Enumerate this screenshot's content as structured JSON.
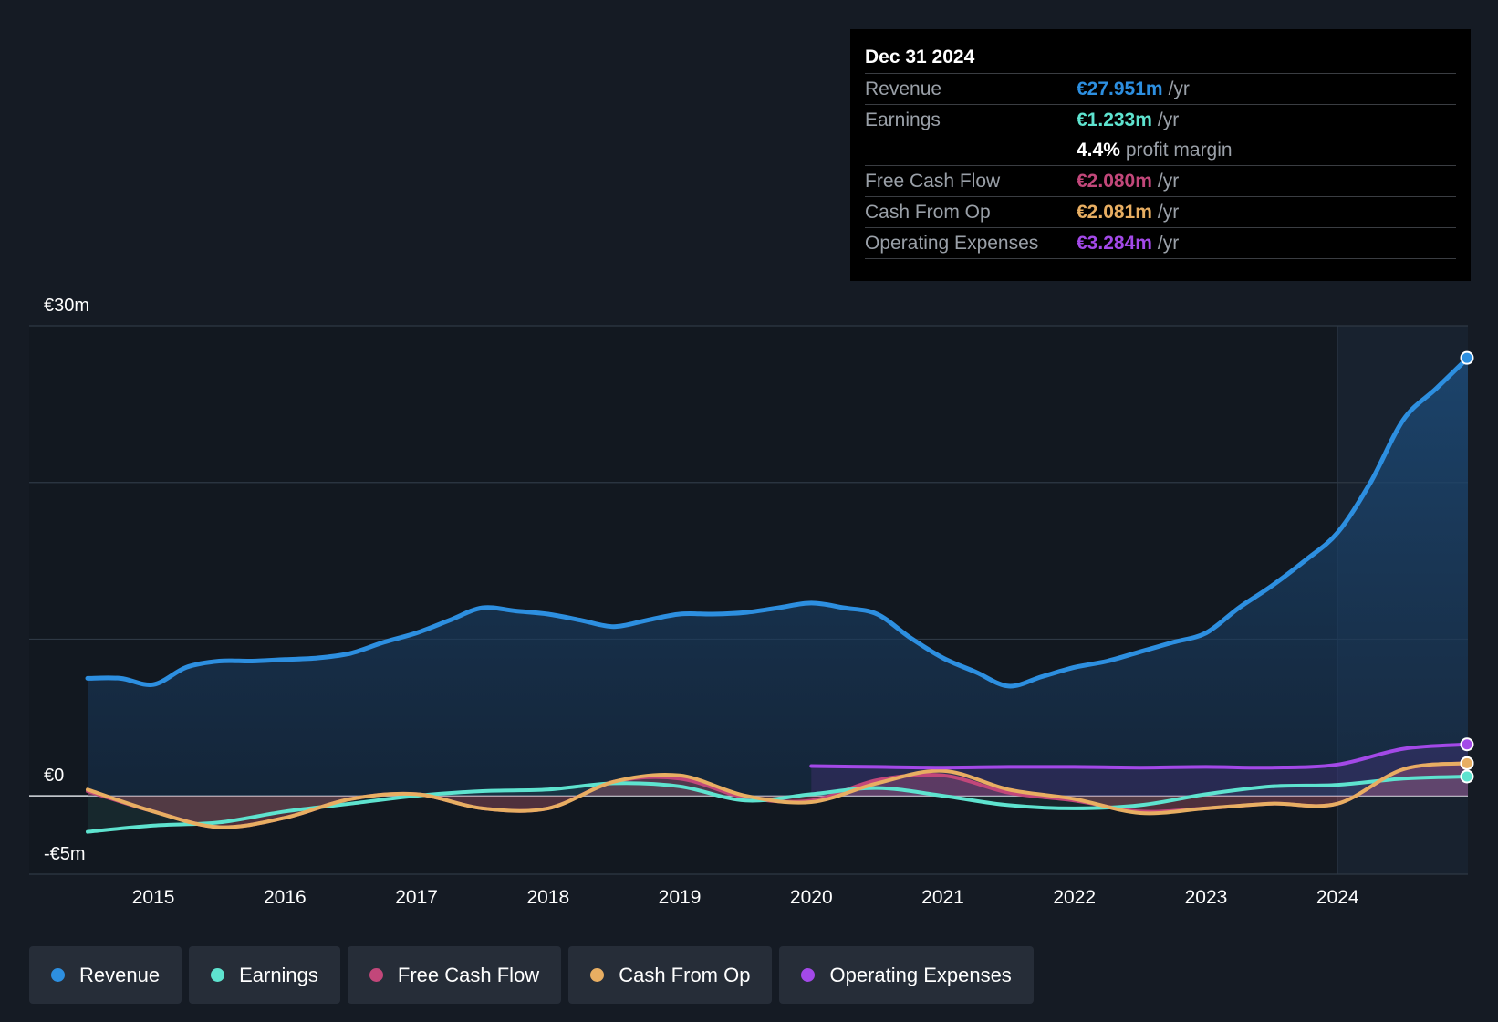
{
  "colors": {
    "revenue": "#2d8fe0",
    "earnings": "#5ee3cf",
    "free_cash_flow": "#c2477a",
    "cash_from_op": "#e8ae62",
    "operating_expenses": "#a349e8"
  },
  "tooltip": {
    "date": "Dec 31 2024",
    "rows": [
      {
        "label": "Revenue",
        "value": "€27.951m",
        "unit": "/yr"
      },
      {
        "label": "Earnings",
        "value": "€1.233m",
        "unit": "/yr"
      },
      {
        "label": "",
        "value": "4.4%",
        "unit": "profit margin"
      },
      {
        "label": "Free Cash Flow",
        "value": "€2.080m",
        "unit": "/yr"
      },
      {
        "label": "Cash From Op",
        "value": "€2.081m",
        "unit": "/yr"
      },
      {
        "label": "Operating Expenses",
        "value": "€3.284m",
        "unit": "/yr"
      }
    ]
  },
  "legend": [
    {
      "label": "Revenue"
    },
    {
      "label": "Earnings"
    },
    {
      "label": "Free Cash Flow"
    },
    {
      "label": "Cash From Op"
    },
    {
      "label": "Operating Expenses"
    }
  ],
  "chart_data": {
    "type": "line",
    "title": "",
    "xlabel": "",
    "ylabel": "",
    "ylim": [
      -5,
      30
    ],
    "xlim": [
      2014.5,
      2024.99
    ],
    "y_tick_labels": [
      {
        "value": 30,
        "label": "€30m"
      },
      {
        "value": 0,
        "label": "€0"
      },
      {
        "value": -5,
        "label": "-€5m"
      }
    ],
    "x_tick_labels": [
      "2015",
      "2016",
      "2017",
      "2018",
      "2019",
      "2020",
      "2021",
      "2022",
      "2023",
      "2024"
    ],
    "x_ticks": [
      2015,
      2016,
      2017,
      2018,
      2019,
      2020,
      2021,
      2022,
      2023,
      2024
    ],
    "gridlines": [
      30,
      20,
      10,
      0,
      -5
    ],
    "highlight_start": 2024.0,
    "series": [
      {
        "name": "Revenue",
        "x": [
          2014.5,
          2014.75,
          2015.0,
          2015.25,
          2015.5,
          2015.75,
          2016.0,
          2016.25,
          2016.5,
          2016.75,
          2017.0,
          2017.25,
          2017.5,
          2017.75,
          2018.0,
          2018.25,
          2018.5,
          2018.75,
          2019.0,
          2019.25,
          2019.5,
          2019.75,
          2020.0,
          2020.25,
          2020.5,
          2020.75,
          2021.0,
          2021.25,
          2021.5,
          2021.75,
          2022.0,
          2022.25,
          2022.5,
          2022.75,
          2023.0,
          2023.25,
          2023.5,
          2023.75,
          2024.0,
          2024.25,
          2024.5,
          2024.75,
          2024.99
        ],
        "values": [
          7.5,
          7.5,
          7.1,
          8.2,
          8.6,
          8.6,
          8.7,
          8.8,
          9.1,
          9.8,
          10.4,
          11.2,
          12.0,
          11.8,
          11.6,
          11.2,
          10.8,
          11.2,
          11.6,
          11.6,
          11.7,
          12.0,
          12.3,
          12.0,
          11.6,
          10.1,
          8.8,
          7.9,
          7.0,
          7.6,
          8.2,
          8.6,
          9.2,
          9.8,
          10.4,
          12.0,
          13.4,
          15.0,
          16.8,
          20.0,
          24.0,
          26.0,
          27.951
        ]
      },
      {
        "name": "Earnings",
        "x": [
          2014.5,
          2015.0,
          2015.5,
          2016.0,
          2016.5,
          2017.0,
          2017.5,
          2018.0,
          2018.5,
          2019.0,
          2019.5,
          2020.0,
          2020.5,
          2021.0,
          2021.5,
          2022.0,
          2022.5,
          2023.0,
          2023.5,
          2024.0,
          2024.5,
          2024.99
        ],
        "values": [
          -2.3,
          -1.9,
          -1.7,
          -1.0,
          -0.5,
          0.0,
          0.3,
          0.4,
          0.8,
          0.6,
          -0.3,
          0.1,
          0.5,
          0.0,
          -0.6,
          -0.8,
          -0.6,
          0.1,
          0.6,
          0.7,
          1.1,
          1.233
        ]
      },
      {
        "name": "Free Cash Flow",
        "x": [
          2014.5,
          2015.0,
          2015.5,
          2016.0,
          2016.5,
          2017.0,
          2017.5,
          2018.0,
          2018.5,
          2019.0,
          2019.5,
          2020.0,
          2020.5,
          2021.0,
          2021.5,
          2022.0,
          2022.5,
          2023.0,
          2023.5,
          2024.0,
          2024.5,
          2024.99
        ],
        "values": [
          0.3,
          -1.0,
          -2.0,
          -1.4,
          -0.2,
          0.1,
          -0.8,
          -0.8,
          0.9,
          1.1,
          -0.1,
          -0.3,
          1.0,
          1.3,
          0.2,
          -0.3,
          -1.0,
          -0.8,
          -0.5,
          -0.5,
          1.7,
          2.08
        ]
      },
      {
        "name": "Cash From Op",
        "x": [
          2014.5,
          2015.0,
          2015.5,
          2016.0,
          2016.5,
          2017.0,
          2017.5,
          2018.0,
          2018.5,
          2019.0,
          2019.5,
          2020.0,
          2020.5,
          2021.0,
          2021.5,
          2022.0,
          2022.5,
          2023.0,
          2023.5,
          2024.0,
          2024.5,
          2024.99
        ],
        "values": [
          0.4,
          -1.0,
          -2.0,
          -1.4,
          -0.2,
          0.1,
          -0.8,
          -0.8,
          0.9,
          1.3,
          0.0,
          -0.4,
          0.8,
          1.6,
          0.4,
          -0.2,
          -1.1,
          -0.8,
          -0.5,
          -0.5,
          1.7,
          2.081
        ]
      },
      {
        "name": "Operating Expenses",
        "x": [
          2020.0,
          2020.5,
          2021.0,
          2021.5,
          2022.0,
          2022.5,
          2023.0,
          2023.5,
          2024.0,
          2024.5,
          2024.99
        ],
        "values": [
          1.9,
          1.85,
          1.8,
          1.85,
          1.85,
          1.8,
          1.85,
          1.8,
          2.0,
          3.0,
          3.284
        ]
      }
    ]
  }
}
